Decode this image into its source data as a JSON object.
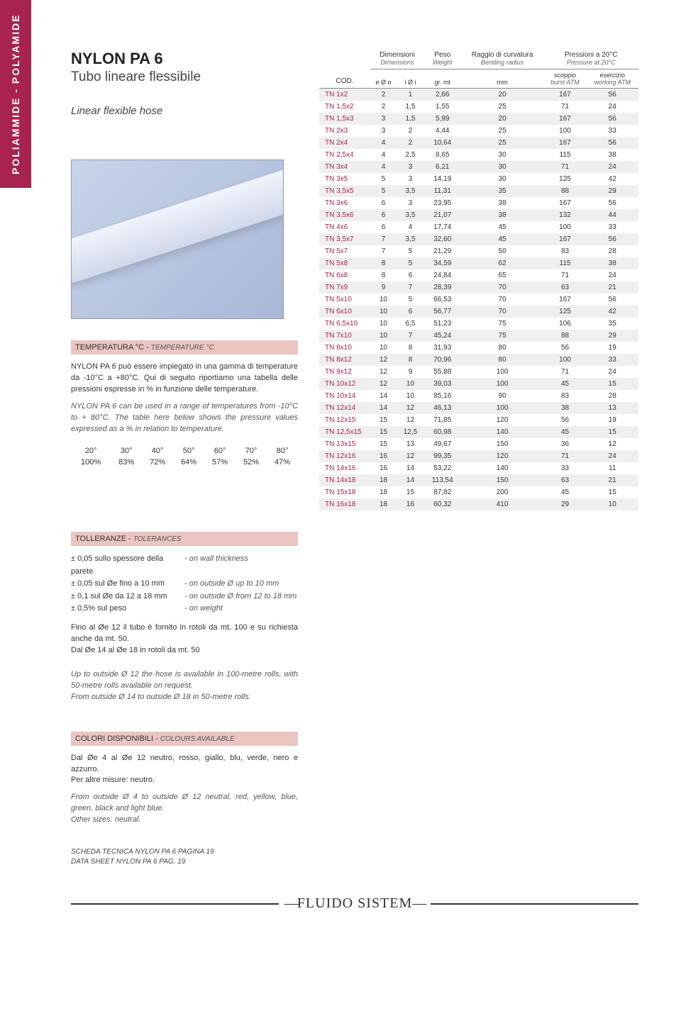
{
  "sideTab": "POLIAMMIDE - POLYAMIDE",
  "title": "NYLON PA 6",
  "subtitle_it": "Tubo lineare flessibile",
  "subtitle_en": "Linear flexible hose",
  "temperature": {
    "head_it": "TEMPERATURA °C",
    "head_en": "TEMPERATURE °C",
    "text_it": "NYLON PA 6 può essere impiegato in una gamma di temperature da -10°C a +80°C. Qui di seguito riportiamo una tabella delle pressioni espresse in % in funzione delle temperature.",
    "text_en": "NYLON PA 6 can be used in a range of temperatures from -10°C to + 80°C. The table here below shows the pressure values expressed as a % in relation to temperature.",
    "cols": [
      "20°",
      "30°",
      "40°",
      "50°",
      "60°",
      "70°",
      "80°"
    ],
    "vals": [
      "100%",
      "83%",
      "72%",
      "64%",
      "57%",
      "52%",
      "47%"
    ]
  },
  "tolerances": {
    "head_it": "TOLLERANZE",
    "head_en": "TOLERANCES",
    "rows": [
      {
        "it": "± 0,05 sullo spessore della parete",
        "en": "- on wall thickness"
      },
      {
        "it": "± 0,05 sul Øe fino a 10 mm",
        "en": "- on outside Ø up to 10 mm"
      },
      {
        "it": "± 0,1  sul Øe da 12 a 18 mm",
        "en": "- on outside Ø from 12 to 18 mm"
      },
      {
        "it": "± 0,5% sul peso",
        "en": "- on weight"
      }
    ],
    "note_it": "Fino al Øe 12 il tubo è fornito in rotoli da mt. 100 e su richiesta anche da mt. 50.\nDal Øe 14 al Øe 18 in rotoli da mt. 50",
    "note_en": "Up to outside Ø 12 the hose is available in 100-metre rolls, with 50-metre rolls available on request.\nFrom outside Ø 14 to outside Ø 18 in 50-metre rolls."
  },
  "colors": {
    "head_it": "COLORI DISPONIBILI",
    "head_en": "COLOURS AVAILABLE",
    "text_it": "Dal Øe 4 al Øe 12 neutro, rosso, giallo, blu, verde, nero e azzurro.\nPer altre misure: neutro.",
    "text_en": "From outside Ø 4 to outside Ø 12 neutral, red, yellow, blue, green, black and light blue.\nOther sizes: neutral."
  },
  "ref_it": "SCHEDA TECNICA NYLON PA 6 pagina 19",
  "ref_en": "DATA SHEET NYLON PA 6 pag. 19",
  "footer_logo": "FLUIDO SISTEM",
  "headers": {
    "cod": "COD.",
    "dim_it": "Dimensioni",
    "dim_en": "Dimensions",
    "peso_it": "Peso",
    "peso_en": "Weight",
    "rag_it": "Raggio di curvatura",
    "rag_en": "Bending radius",
    "pres_it": "Pressioni a 20°C",
    "pres_en": "Pressure at 20°C",
    "eo": "e Ø o",
    "ii": "i Ø i",
    "gr": "gr. mt",
    "mm": "mm",
    "scoppio_it": "scoppio",
    "scoppio_en": "burst ATM",
    "eserc_it": "esercizio",
    "eserc_en": "working ATM"
  },
  "rows": [
    [
      "TN 1x2",
      "2",
      "1",
      "2,66",
      "20",
      "167",
      "56"
    ],
    [
      "TN 1,5x2",
      "2",
      "1,5",
      "1,55",
      "25",
      "71",
      "24"
    ],
    [
      "TN 1,5x3",
      "3",
      "1,5",
      "5,99",
      "20",
      "167",
      "56"
    ],
    [
      "TN 2x3",
      "3",
      "2",
      "4,44",
      "25",
      "100",
      "33"
    ],
    [
      "TN 2x4",
      "4",
      "2",
      "10,64",
      "25",
      "167",
      "56"
    ],
    [
      "TN 2,5x4",
      "4",
      "2,5",
      "8,65",
      "30",
      "115",
      "38"
    ],
    [
      "TN 3x4",
      "4",
      "3",
      "6,21",
      "30",
      "71",
      "24"
    ],
    [
      "TN 3x5",
      "5",
      "3",
      "14,19",
      "30",
      "125",
      "42"
    ],
    [
      "TN 3,5x5",
      "5",
      "3,5",
      "11,31",
      "35",
      "88",
      "29"
    ],
    [
      "TN 3x6",
      "6",
      "3",
      "23,95",
      "38",
      "167",
      "56"
    ],
    [
      "TN 3,5x6",
      "6",
      "3,5",
      "21,07",
      "38",
      "132",
      "44"
    ],
    [
      "TN 4x6",
      "6",
      "4",
      "17,74",
      "45",
      "100",
      "33"
    ],
    [
      "TN 3,5x7",
      "7",
      "3,5",
      "32,60",
      "45",
      "167",
      "56"
    ],
    [
      "TN 5x7",
      "7",
      "5",
      "21,29",
      "50",
      "83",
      "28"
    ],
    [
      "TN 5x8",
      "8",
      "5",
      "34,59",
      "62",
      "115",
      "38"
    ],
    [
      "TN 6x8",
      "8",
      "6",
      "24,84",
      "65",
      "71",
      "24"
    ],
    [
      "TN 7x9",
      "9",
      "7",
      "28,39",
      "70",
      "63",
      "21"
    ],
    [
      "TN 5x10",
      "10",
      "5",
      "66,53",
      "70",
      "167",
      "56"
    ],
    [
      "TN 6x10",
      "10",
      "6",
      "56,77",
      "70",
      "125",
      "42"
    ],
    [
      "TN 6,5x10",
      "10",
      "6,5",
      "51,23",
      "75",
      "106",
      "35"
    ],
    [
      "TN 7x10",
      "10",
      "7",
      "45,24",
      "75",
      "88",
      "29"
    ],
    [
      "TN 8x10",
      "10",
      "8",
      "31,93",
      "80",
      "56",
      "19"
    ],
    [
      "TN 8x12",
      "12",
      "8",
      "70,96",
      "80",
      "100",
      "33"
    ],
    [
      "TN 9x12",
      "12",
      "9",
      "55,88",
      "100",
      "71",
      "24"
    ],
    [
      "TN 10x12",
      "12",
      "10",
      "39,03",
      "100",
      "45",
      "15"
    ],
    [
      "TN 10x14",
      "14",
      "10",
      "85,16",
      "90",
      "83",
      "28"
    ],
    [
      "TN 12x14",
      "14",
      "12",
      "46,13",
      "100",
      "38",
      "13"
    ],
    [
      "TN 12x15",
      "15",
      "12",
      "71,85",
      "120",
      "56",
      "19"
    ],
    [
      "TN 12,5x15",
      "15",
      "12,5",
      "60,98",
      "140",
      "45",
      "15"
    ],
    [
      "TN 13x15",
      "15",
      "13",
      "49,67",
      "150",
      "36",
      "12"
    ],
    [
      "TN 12x16",
      "16",
      "12",
      "99,35",
      "120",
      "71",
      "24"
    ],
    [
      "TN 14x16",
      "16",
      "14",
      "53,22",
      "140",
      "33",
      "11"
    ],
    [
      "TN 14x18",
      "18",
      "14",
      "113,54",
      "150",
      "63",
      "21"
    ],
    [
      "TN 15x18",
      "18",
      "15",
      "87,82",
      "200",
      "45",
      "15"
    ],
    [
      "TN 16x18",
      "18",
      "16",
      "60,32",
      "410",
      "29",
      "10"
    ]
  ],
  "style": {
    "accent": "#a8234f",
    "section_bg": "#eac5c1",
    "row_alt_bg": "#efefef",
    "text": "#333333",
    "muted": "#666666",
    "page_bg": "#ffffff"
  }
}
